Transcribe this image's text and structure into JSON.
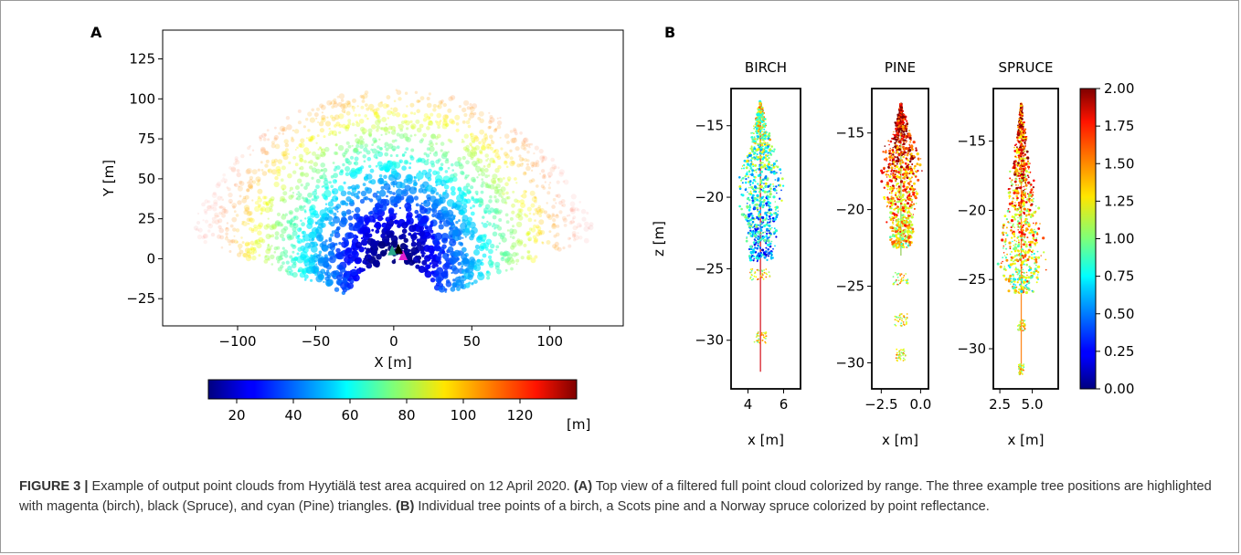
{
  "chart_data": [
    {
      "panel": "A",
      "type": "scatter",
      "xlabel": "X [m]",
      "ylabel": "Y [m]",
      "xlim": [
        -148,
        147
      ],
      "ylim": [
        -42,
        143
      ],
      "xticks": [
        -100,
        -50,
        0,
        50,
        100
      ],
      "yticks": [
        -25,
        0,
        25,
        50,
        75,
        100,
        125
      ],
      "tick_labels_x": [
        "−100",
        "−50",
        "0",
        "50",
        "100"
      ],
      "tick_labels_y": [
        "−25",
        "0",
        "25",
        "50",
        "75",
        "100",
        "125"
      ],
      "grid": false,
      "colormap": "jet",
      "colorbar": {
        "orientation": "horizontal",
        "range": [
          10,
          140
        ],
        "ticks": [
          20,
          40,
          60,
          80,
          100,
          120
        ],
        "unit_label": "[m]"
      },
      "tree_markers": [
        {
          "tree": "birch",
          "color": "#e020d0",
          "x": 6,
          "y": 2
        },
        {
          "tree": "spruce",
          "color": "#000000",
          "x": 3,
          "y": 6
        },
        {
          "tree": "pine",
          "color": "#2aa88a",
          "x": -1,
          "y": 5
        }
      ]
    },
    {
      "panel": "B",
      "type": "scatter",
      "title": "BIRCH",
      "xlabel": "x [m]",
      "ylabel": "z [m]",
      "xlim": [
        3.05,
        6.95
      ],
      "ylim": [
        -33.4,
        -12.4
      ],
      "xticks": [
        4,
        6
      ],
      "yticks": [
        -30,
        -25,
        -20,
        -15
      ],
      "tick_labels_x": [
        "4",
        "6"
      ],
      "tick_labels_y": [
        "−30",
        "−25",
        "−20",
        "−15"
      ],
      "grid": false
    },
    {
      "panel": "B",
      "type": "scatter",
      "title": "PINE",
      "xlabel": "x [m]",
      "xlim": [
        -3.1,
        0.5
      ],
      "ylim": [
        -31.7,
        -12.1
      ],
      "xticks": [
        -2.5,
        0.0
      ],
      "yticks": [
        -30,
        -25,
        -20,
        -15
      ],
      "tick_labels_x": [
        "−2.5",
        "0.0"
      ],
      "tick_labels_y": [
        "−30",
        "−25",
        "−20",
        "−15"
      ],
      "grid": false
    },
    {
      "panel": "B",
      "type": "scatter",
      "title": "SPRUCE",
      "xlabel": "x [m]",
      "xlim": [
        2.0,
        7.0
      ],
      "ylim": [
        -32.9,
        -11.2
      ],
      "xticks": [
        2.5,
        5.0
      ],
      "yticks": [
        -30,
        -25,
        -20,
        -15
      ],
      "tick_labels_x": [
        "2.5",
        "5.0"
      ],
      "tick_labels_y": [
        "−30",
        "−25",
        "−20",
        "−15"
      ],
      "grid": false,
      "colorbar": {
        "orientation": "vertical",
        "colormap": "jet",
        "range": [
          0.0,
          2.0
        ],
        "ticks": [
          0.0,
          0.25,
          0.5,
          0.75,
          1.0,
          1.25,
          1.5,
          1.75,
          2.0
        ],
        "tick_labels": [
          "0.00",
          "0.25",
          "0.50",
          "0.75",
          "1.00",
          "1.25",
          "1.50",
          "1.75",
          "2.00"
        ]
      }
    }
  ],
  "labels": {
    "panel_a": "A",
    "panel_b": "B",
    "colorbar_unit": "[m]"
  },
  "caption": {
    "figure_label": "FIGURE 3 |",
    "intro": " Example of output point clouds from Hyytiälä test area acquired on 12 April 2020. ",
    "a_label": "(A)",
    "a_text": " Top view of a filtered full point cloud colorized by range. The three example tree positions are highlighted with magenta (birch), black (Spruce), and cyan (Pine) triangles. ",
    "b_label": "(B)",
    "b_text": " Individual tree points of a birch, a Scots pine and a Norway spruce colorized by point reflectance."
  }
}
